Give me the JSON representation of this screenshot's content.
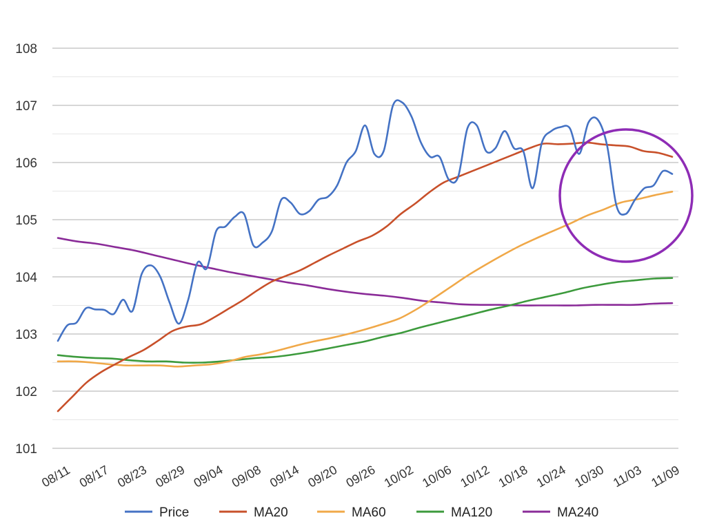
{
  "chart_data": {
    "type": "line",
    "title": "",
    "xlabel": "",
    "ylabel": "",
    "ylim": [
      101,
      108
    ],
    "y_ticks": [
      101,
      102,
      103,
      104,
      105,
      106,
      107,
      108
    ],
    "minor_gridlines": true,
    "legend_position": "bottom",
    "x_tick_labels": [
      "08/11",
      "08/17",
      "08/23",
      "08/29",
      "09/04",
      "09/08",
      "09/14",
      "09/20",
      "09/26",
      "10/02",
      "10/06",
      "10/12",
      "10/18",
      "10/24",
      "10/30",
      "11/03",
      "11/09"
    ],
    "annotation": {
      "type": "circle",
      "color": "#8E2CB5",
      "around": "recent price drop near 11/03"
    },
    "series": [
      {
        "name": "Price",
        "color": "#4472C4",
        "values": [
          102.88,
          103.15,
          103.2,
          103.45,
          103.43,
          103.42,
          103.35,
          103.6,
          103.4,
          104.05,
          104.2,
          104.0,
          103.55,
          103.18,
          103.6,
          104.25,
          104.15,
          104.8,
          104.88,
          105.05,
          105.1,
          104.55,
          104.6,
          104.8,
          105.35,
          105.3,
          105.1,
          105.15,
          105.35,
          105.4,
          105.6,
          106.0,
          106.2,
          106.65,
          106.15,
          106.2,
          107.0,
          107.05,
          106.8,
          106.35,
          106.1,
          106.1,
          105.7,
          105.75,
          106.6,
          106.65,
          106.2,
          106.25,
          106.55,
          106.25,
          106.2,
          105.55,
          106.35,
          106.55,
          106.62,
          106.6,
          106.15,
          106.7,
          106.75,
          106.3,
          105.25,
          105.1,
          105.35,
          105.55,
          105.6,
          105.85,
          105.8
        ]
      },
      {
        "name": "MA20",
        "color": "#C8502A",
        "values": [
          101.65,
          101.9,
          102.15,
          102.33,
          102.47,
          102.6,
          102.72,
          102.88,
          103.05,
          103.13,
          103.17,
          103.3,
          103.45,
          103.6,
          103.77,
          103.92,
          104.02,
          104.12,
          104.25,
          104.38,
          104.5,
          104.62,
          104.72,
          104.88,
          105.1,
          105.28,
          105.48,
          105.65,
          105.75,
          105.85,
          105.95,
          106.05,
          106.15,
          106.25,
          106.33,
          106.32,
          106.33,
          106.35,
          106.32,
          106.3,
          106.28,
          106.2,
          106.17,
          106.1
        ]
      },
      {
        "name": "MA60",
        "color": "#F0A848",
        "values": [
          102.52,
          102.52,
          102.5,
          102.47,
          102.45,
          102.45,
          102.45,
          102.43,
          102.45,
          102.47,
          102.52,
          102.6,
          102.65,
          102.72,
          102.8,
          102.87,
          102.93,
          103.0,
          103.08,
          103.17,
          103.27,
          103.43,
          103.62,
          103.82,
          104.02,
          104.2,
          104.37,
          104.53,
          104.67,
          104.8,
          104.93,
          105.07,
          105.18,
          105.3,
          105.36,
          105.43,
          105.49
        ]
      },
      {
        "name": "MA120",
        "color": "#3C9A3C",
        "values": [
          102.63,
          102.6,
          102.58,
          102.57,
          102.54,
          102.52,
          102.52,
          102.5,
          102.5,
          102.52,
          102.55,
          102.58,
          102.6,
          102.64,
          102.69,
          102.75,
          102.81,
          102.87,
          102.95,
          103.02,
          103.11,
          103.19,
          103.27,
          103.35,
          103.43,
          103.5,
          103.58,
          103.65,
          103.72,
          103.8,
          103.86,
          103.91,
          103.94,
          103.97,
          103.98
        ]
      },
      {
        "name": "MA240",
        "color": "#8A2B98",
        "values": [
          104.68,
          104.62,
          104.58,
          104.52,
          104.46,
          104.38,
          104.3,
          104.22,
          104.15,
          104.08,
          104.02,
          103.96,
          103.9,
          103.85,
          103.79,
          103.74,
          103.7,
          103.67,
          103.63,
          103.58,
          103.55,
          103.52,
          103.51,
          103.51,
          103.5,
          103.5,
          103.5,
          103.5,
          103.51,
          103.51,
          103.51,
          103.53,
          103.54
        ]
      }
    ]
  }
}
